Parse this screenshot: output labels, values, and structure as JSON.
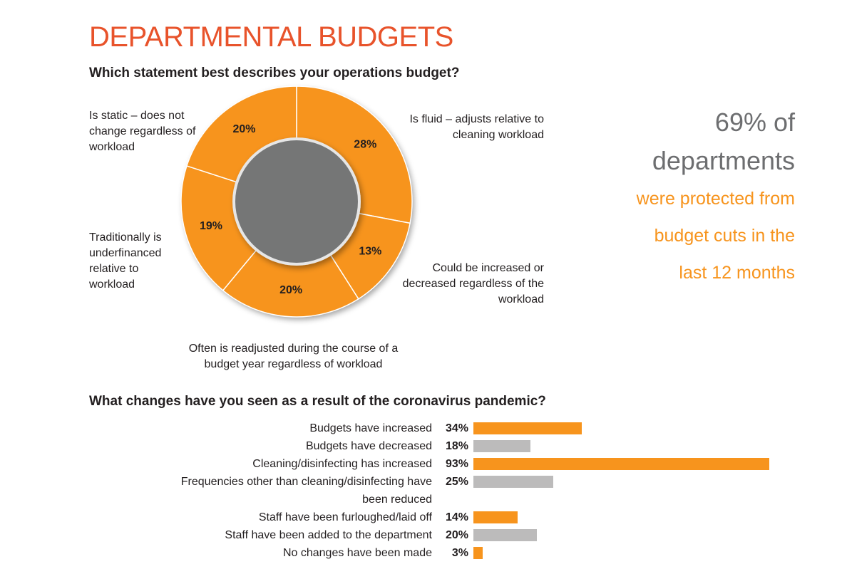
{
  "header": {
    "title": "DEPARTMENTAL BUDGETS"
  },
  "callout": {
    "headline_lines": [
      "69% of",
      "departments"
    ],
    "detail_lines": [
      "were protected from",
      "budget cuts in the",
      "last 12 months"
    ]
  },
  "chart_data": [
    {
      "type": "donut",
      "title": "Which statement best describes your operations budget?",
      "categories": [
        "Is fluid – adjusts relative to cleaning workload",
        "Could be increased or decreased regardless of the workload",
        "Often is readjusted during the course of a budget year regardless of workload",
        "Traditionally is underfinanced relative to workload",
        "Is static – does not change regardless of workload"
      ],
      "values": [
        28,
        13,
        20,
        19,
        20
      ],
      "value_labels": [
        "28%",
        "13%",
        "20%",
        "19%",
        "20%"
      ],
      "color": "#f7941d",
      "center_color": "#747676"
    },
    {
      "type": "hbar",
      "title": "What changes have you seen as a result of the coronavirus pandemic?",
      "categories": [
        "Budgets have increased",
        "Budgets have decreased",
        "Cleaning/disinfecting has increased",
        "Frequencies other than cleaning/disinfecting have been reduced",
        "Staff have been furloughed/laid off",
        "Staff have been added to the department",
        "No changes have been made"
      ],
      "values": [
        34,
        18,
        93,
        25,
        14,
        20,
        3
      ],
      "value_labels": [
        "34%",
        "18%",
        "93%",
        "25%",
        "14%",
        "20%",
        "3%"
      ],
      "colors": [
        "#f7941d",
        "#bcbbbb",
        "#f7941d",
        "#bcbbbb",
        "#f7941d",
        "#bcbbbb",
        "#f7941d"
      ]
    }
  ]
}
